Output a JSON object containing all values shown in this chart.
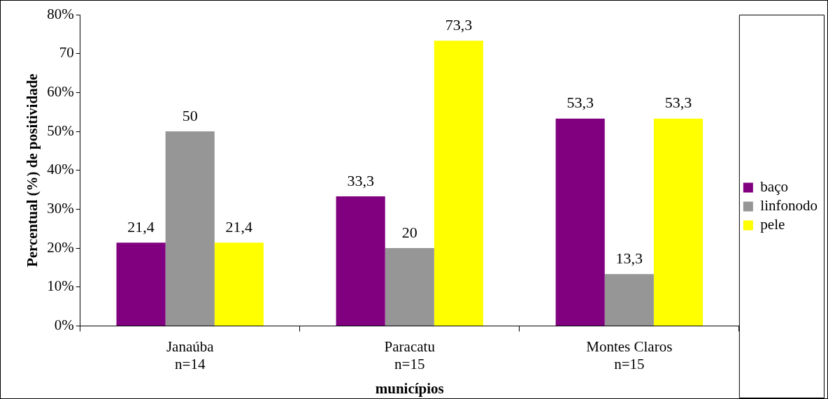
{
  "chart_data": {
    "type": "bar",
    "xlabel": "municípios",
    "ylabel": "Percentual (%) de positividade",
    "categories": [
      "Janaúba\nn=14",
      "Paracatu\nn=15",
      "Montes Claros\nn=15"
    ],
    "series": [
      {
        "name": "baço",
        "color": "#800080",
        "values": [
          21.4,
          33.3,
          53.3
        ]
      },
      {
        "name": "linfonodo",
        "color": "#969696",
        "values": [
          50,
          20,
          13.3
        ]
      },
      {
        "name": "pele",
        "color": "#ffff00",
        "values": [
          21.4,
          73.3,
          53.3
        ]
      }
    ],
    "value_labels": [
      [
        "21,4",
        "33,3",
        "53,3"
      ],
      [
        "50",
        "20",
        "13,3"
      ],
      [
        "21,4",
        "73,3",
        "53,3"
      ]
    ],
    "ylim": [
      0,
      80
    ],
    "yticks": [
      {
        "value": 0,
        "label": "0%"
      },
      {
        "value": 10,
        "label": "10%"
      },
      {
        "value": 20,
        "label": "20%"
      },
      {
        "value": 30,
        "label": "30%"
      },
      {
        "value": 40,
        "label": "40%"
      },
      {
        "value": 50,
        "label": "50%"
      },
      {
        "value": 60,
        "label": "60%"
      },
      {
        "value": 70,
        "label": "70"
      },
      {
        "value": 80,
        "label": "80%"
      }
    ],
    "grid": false,
    "legend": "right"
  }
}
